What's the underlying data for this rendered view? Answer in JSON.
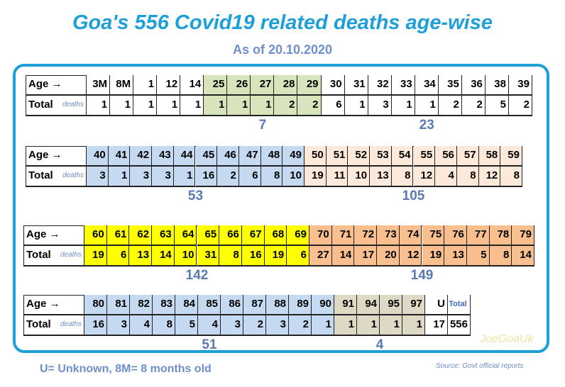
{
  "header": {
    "title": "Goa's 556 Covid19 related deaths age-wise",
    "subtitle": "As of 20.10.2020"
  },
  "tables": [
    {
      "age_label": "Age →",
      "total_label": "Total",
      "deaths_label": "deaths",
      "groups": [
        {
          "color": "#ffffff",
          "ages": [
            "3M",
            "8M",
            1,
            12,
            14
          ],
          "totals": [
            1,
            1,
            1,
            1,
            1
          ]
        },
        {
          "color": "#d8e4bc",
          "ages": [
            25,
            26,
            27,
            28,
            29
          ],
          "totals": [
            1,
            1,
            1,
            2,
            2
          ],
          "sum": 7
        },
        {
          "color": "#ffffff",
          "ages": [
            30,
            31,
            32,
            33,
            34,
            35,
            36,
            38,
            39
          ],
          "totals": [
            6,
            1,
            3,
            1,
            1,
            2,
            2,
            5,
            2
          ],
          "sum": 23
        }
      ]
    },
    {
      "age_label": "Age →",
      "total_label": "Total",
      "deaths_label": "deaths",
      "groups": [
        {
          "color": "#c5d9f1",
          "ages": [
            40,
            41,
            42,
            43,
            44,
            45,
            46,
            47,
            48,
            49
          ],
          "totals": [
            3,
            1,
            3,
            3,
            1,
            16,
            2,
            6,
            8,
            10
          ],
          "sum": 53
        },
        {
          "color": "#fde9d9",
          "ages": [
            50,
            51,
            52,
            53,
            54,
            55,
            56,
            57,
            58,
            59
          ],
          "totals": [
            19,
            11,
            10,
            13,
            8,
            12,
            4,
            8,
            12,
            8
          ],
          "sum": 105
        }
      ]
    },
    {
      "age_label": "Age →",
      "total_label": "Total",
      "deaths_label": "deaths",
      "groups": [
        {
          "color": "#ffff00",
          "ages": [
            60,
            61,
            62,
            63,
            64,
            65,
            66,
            67,
            68,
            69
          ],
          "totals": [
            19,
            6,
            13,
            14,
            10,
            31,
            8,
            16,
            19,
            6
          ],
          "sum": 142
        },
        {
          "color": "#fabf8f",
          "ages": [
            70,
            71,
            72,
            73,
            74,
            75,
            76,
            77,
            78,
            79
          ],
          "totals": [
            27,
            14,
            17,
            20,
            12,
            19,
            13,
            5,
            8,
            14
          ],
          "sum": 149
        }
      ]
    },
    {
      "age_label": "Age →",
      "total_label": "Total",
      "deaths_label": "deaths",
      "groups": [
        {
          "color": "#c5d9f1",
          "ages": [
            80,
            81,
            82,
            83,
            84,
            85,
            86,
            87,
            88,
            89,
            90
          ],
          "totals": [
            16,
            3,
            4,
            8,
            5,
            4,
            3,
            2,
            3,
            2,
            1
          ],
          "sum": 51
        },
        {
          "color": "#ddd9c4",
          "ages": [
            91,
            94,
            95,
            97
          ],
          "totals": [
            1,
            1,
            1,
            1
          ],
          "sum": 4
        },
        {
          "color": "#ffffff",
          "ages": [
            "U",
            "Total"
          ],
          "totals": [
            17,
            556
          ]
        }
      ]
    }
  ],
  "footer": {
    "note": "U= Unknown,  8M= 8 months old",
    "source": "Source: Govt official reports",
    "watermark": "JoeGoaUk"
  }
}
